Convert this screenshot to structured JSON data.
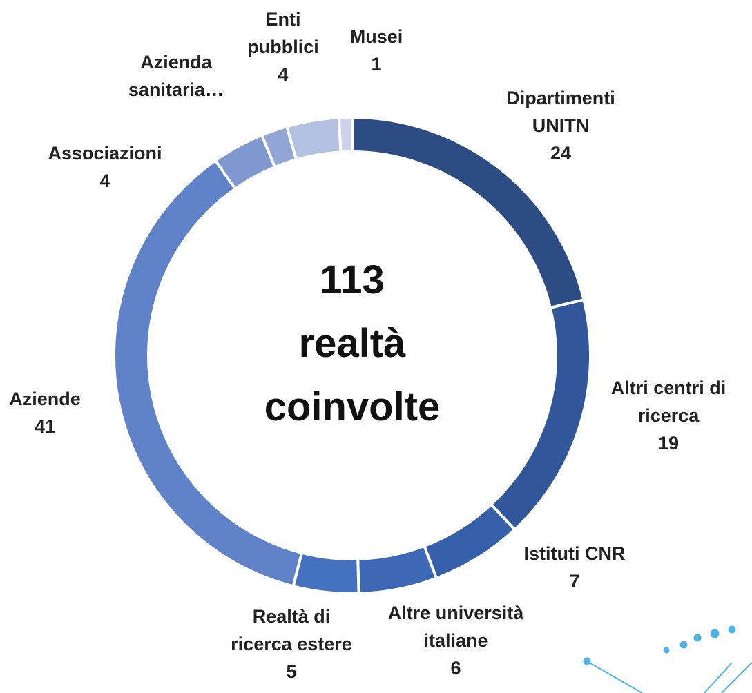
{
  "chart_data": {
    "type": "donut",
    "center_label": [
      "113",
      "realtà",
      "coinvolte"
    ],
    "categories": [
      "Dipartimenti UNITN",
      "Altri centri di ricerca",
      "Istituti CNR",
      "Altre università italiane",
      "Realtà di ricerca estere",
      "Aziende",
      "Associazioni",
      "Azienda sanitaria…",
      "Enti pubblici",
      "Musei"
    ],
    "values": [
      24,
      19,
      7,
      6,
      5,
      41,
      4,
      2,
      4,
      1
    ],
    "value_labels": [
      "24",
      "19",
      "7",
      "6",
      "5",
      "41",
      "4",
      null,
      "4",
      "1"
    ],
    "colors": [
      "#2e4c84",
      "#31579a",
      "#3760aa",
      "#3c68b6",
      "#4471c0",
      "#6082c8",
      "#8098d0",
      "#92a6d6",
      "#b3c0e1",
      "#c9d2ea"
    ]
  }
}
